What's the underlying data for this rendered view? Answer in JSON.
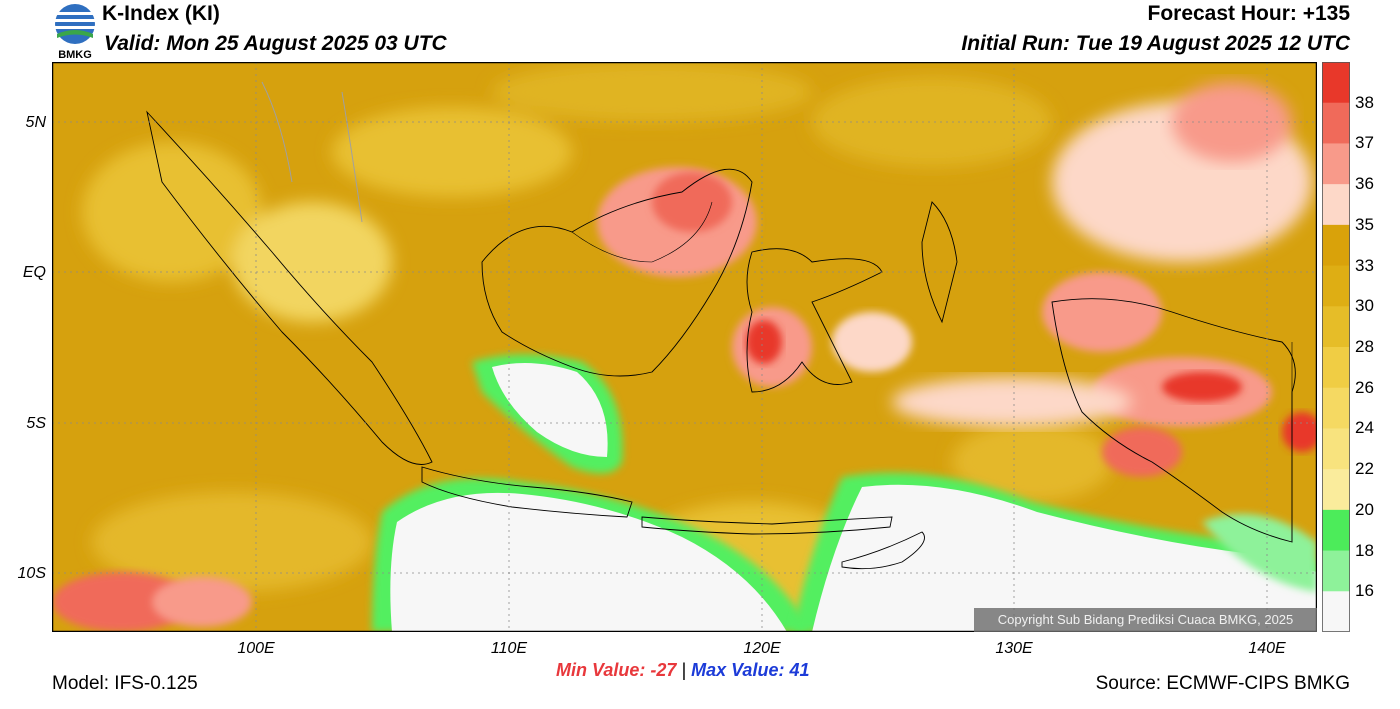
{
  "header": {
    "title": "K-Index (KI)",
    "valid": "Valid: Mon 25 August 2025 03 UTC",
    "forecast_hour": "Forecast Hour: +135",
    "initial_run": "Initial Run: Tue 19 August 2025 12 UTC"
  },
  "logo": {
    "text": "BMKG"
  },
  "axes": {
    "y_ticks": [
      "5N",
      "EQ",
      "5S",
      "10S"
    ],
    "x_ticks": [
      "100E",
      "110E",
      "120E",
      "130E",
      "140E"
    ]
  },
  "colorbar": {
    "labels": [
      "38",
      "37",
      "36",
      "35",
      "33",
      "30",
      "28",
      "26",
      "24",
      "22",
      "20",
      "18",
      "16"
    ],
    "colors": [
      "#e8382a",
      "#f06a5a",
      "#f89a8a",
      "#fdd8c8",
      "#d9a20a",
      "#deae14",
      "#e6bd28",
      "#f0cd44",
      "#f5d962",
      "#f8e37e",
      "#faec9c",
      "#4cec5a",
      "#8ef29a",
      "#f7f7f7"
    ]
  },
  "stats": {
    "min_label": "Min Value: -27",
    "separator": "|",
    "max_label": "Max Value:  41"
  },
  "footer": {
    "model": "Model: IFS-0.125",
    "source": "Source: ECMWF-CIPS BMKG",
    "copyright": "Copyright Sub Bidang Prediksi Cuaca BMKG, 2025"
  }
}
